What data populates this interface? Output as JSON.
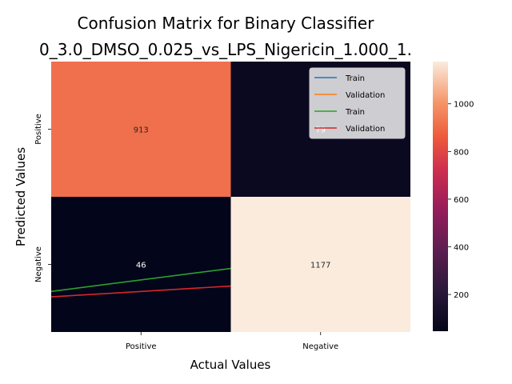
{
  "chart_data": {
    "type": "heatmap",
    "title_line1": "Confusion Matrix for Binary Classifier",
    "title_line2": "0_3.0_DMSO_0.025_vs_LPS_Nigericin_1.000_1.",
    "xlabel": "Actual Values",
    "ylabel": "Predicted Values",
    "x_categories": [
      "Positive",
      "Negative"
    ],
    "y_categories": [
      "Positive",
      "Negative"
    ],
    "matrix": [
      [
        913,
        79
      ],
      [
        46,
        1177
      ]
    ],
    "cell_labels": [
      [
        "913",
        "79"
      ],
      [
        "46",
        "1177"
      ]
    ],
    "colorbar": {
      "min": 46,
      "max": 1177,
      "ticks": [
        "200",
        "400",
        "600",
        "800",
        "1000"
      ],
      "tick_values": [
        200,
        400,
        600,
        800,
        1000
      ]
    },
    "legend": {
      "placement": "upper-right",
      "entries": [
        {
          "name": "Train",
          "color": "#1f77b4"
        },
        {
          "name": "Validation",
          "color": "#ff7f0e"
        },
        {
          "name": "Train",
          "color": "#2ca02c"
        },
        {
          "name": "Validation",
          "color": "#d62728"
        }
      ]
    },
    "lines": [
      {
        "name": "Train",
        "color": "#2ca02c",
        "y": [
          0.3,
          0.47
        ]
      },
      {
        "name": "Validation",
        "color": "#d62728",
        "y": [
          0.26,
          0.34
        ]
      }
    ]
  }
}
